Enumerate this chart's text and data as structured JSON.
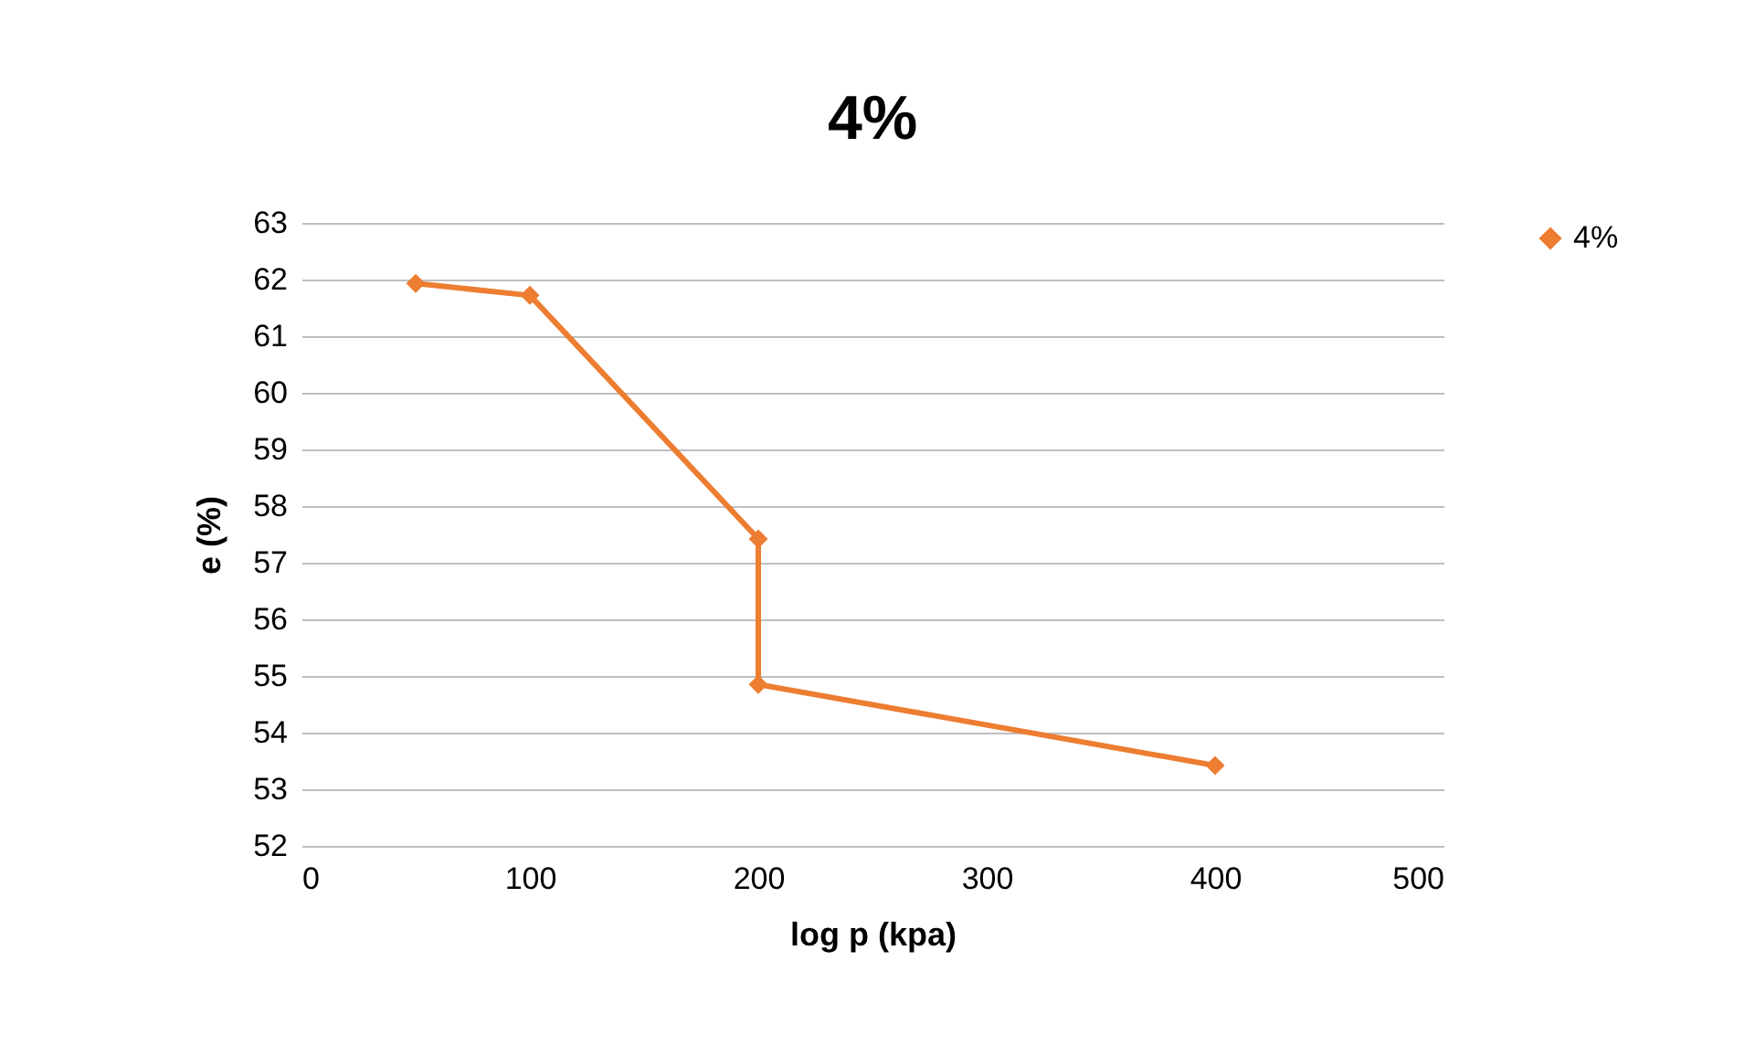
{
  "chart_data": {
    "type": "line",
    "title": "4%",
    "xlabel": "log p (kpa)",
    "ylabel": "e (%)",
    "x": [
      50,
      100,
      200,
      200,
      400
    ],
    "series": [
      {
        "name": "4%",
        "color": "#ed7d31",
        "values": [
          61.93,
          61.72,
          57.42,
          54.85,
          53.42
        ]
      }
    ],
    "xlim": [
      0,
      500
    ],
    "xticks": [
      0,
      100,
      200,
      300,
      400,
      500
    ],
    "ylim": [
      52,
      63
    ],
    "yticks": [
      52,
      53,
      54,
      55,
      56,
      57,
      58,
      59,
      60,
      61,
      62,
      63
    ],
    "grid": "y",
    "legend": "right",
    "marker": "diamond",
    "line_style": "solid"
  }
}
